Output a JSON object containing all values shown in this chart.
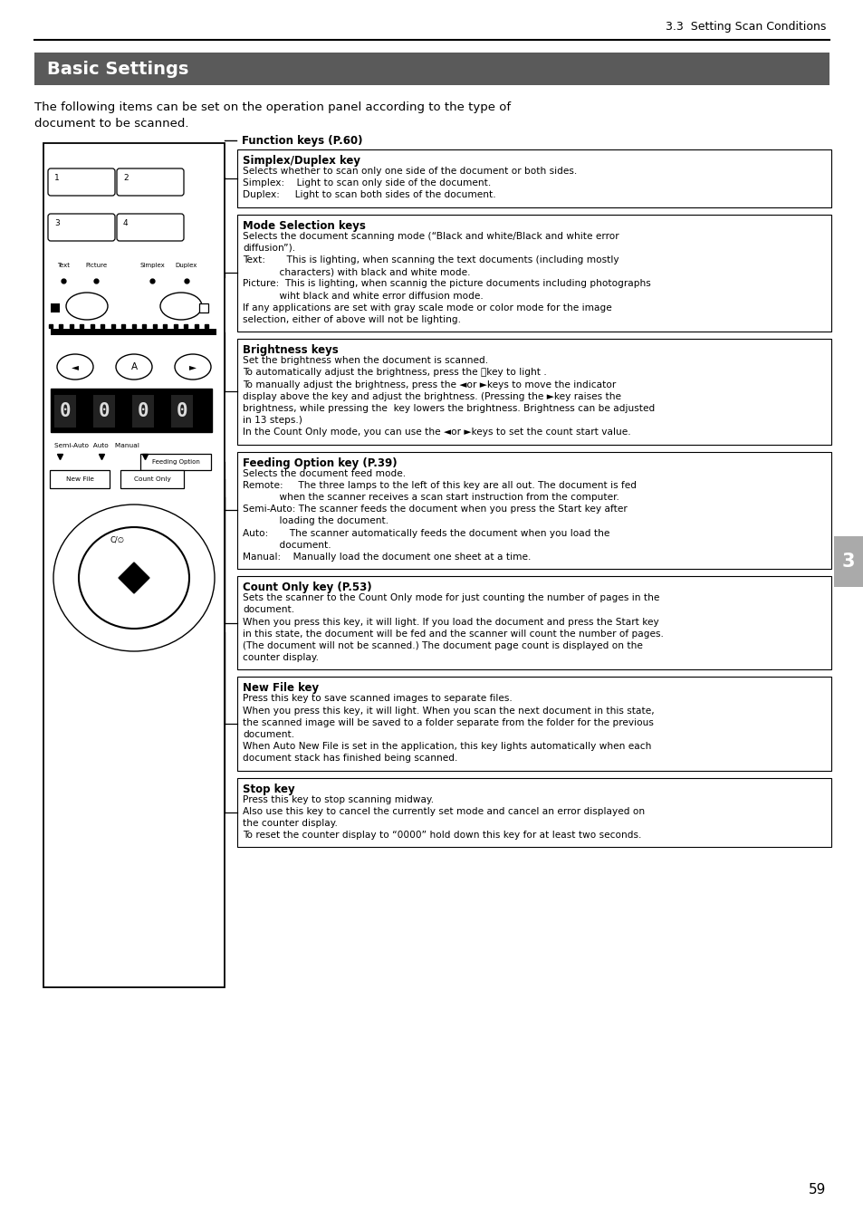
{
  "page_header": "3.3  Setting Scan Conditions",
  "section_title": "Basic Settings",
  "intro_line1": "The following items can be set on the operation panel according to the type of",
  "intro_line2": "document to be scanned.",
  "section_title_bg": "#5a5a5a",
  "section_title_color": "#ffffff",
  "page_number": "59",
  "chapter_number": "3",
  "fk_label": "Function keys (P.60)",
  "boxes": [
    {
      "title": "Simplex/Duplex key",
      "lines": [
        "Selects whether to scan only one side of the document or both sides.",
        "Simplex:    Light to scan only side of the document.",
        "Duplex:     Light to scan both sides of the document."
      ]
    },
    {
      "title": "Mode Selection keys",
      "lines": [
        "Selects the document scanning mode (“Black and white/Black and white error",
        "diffusion”).",
        "Text:       This is lighting, when scanning the text documents (including mostly",
        "            characters) with black and white mode.",
        "Picture:  This is lighting, when scannig the picture documents including photographs",
        "            wiht black and white error diffusion mode.",
        "If any applications are set with gray scale mode or color mode for the image",
        "selection, either of above will not be lighting."
      ]
    },
    {
      "title": "Brightness keys",
      "lines": [
        "Set the brightness when the document is scanned.",
        "To automatically adjust the brightness, press the Ⓐkey to light .",
        "To manually adjust the brightness, press the ◄or ►keys to move the indicator",
        "display above the key and adjust the brightness. (Pressing the ►key raises the",
        "brightness, while pressing the  key lowers the brightness. Brightness can be adjusted",
        "in 13 steps.)",
        "In the Count Only mode, you can use the ◄or ►keys to set the count start value."
      ]
    },
    {
      "title": "Feeding Option key (P.39)",
      "lines": [
        "Selects the document feed mode.",
        "Remote:     The three lamps to the left of this key are all out. The document is fed",
        "            when the scanner receives a scan start instruction from the computer.",
        "Semi-Auto: The scanner feeds the document when you press the Start key after",
        "            loading the document.",
        "Auto:       The scanner automatically feeds the document when you load the",
        "            document.",
        "Manual:    Manually load the document one sheet at a time."
      ]
    },
    {
      "title": "Count Only key (P.53)",
      "lines": [
        "Sets the scanner to the Count Only mode for just counting the number of pages in the",
        "document.",
        "When you press this key, it will light. If you load the document and press the Start key",
        "in this state, the document will be fed and the scanner will count the number of pages.",
        "(The document will not be scanned.) The document page count is displayed on the",
        "counter display."
      ]
    },
    {
      "title": "New File key",
      "lines": [
        "Press this key to save scanned images to separate files.",
        "When you press this key, it will light. When you scan the next document in this state,",
        "the scanned image will be saved to a folder separate from the folder for the previous",
        "document.",
        "When Auto New File is set in the application, this key lights automatically when each",
        "document stack has finished being scanned."
      ]
    },
    {
      "title": "Stop key",
      "lines": [
        "Press this key to stop scanning midway.",
        "Also use this key to cancel the currently set mode and cancel an error displayed on",
        "the counter display.",
        "To reset the counter display to “0000” hold down this key for at least two seconds."
      ]
    }
  ]
}
